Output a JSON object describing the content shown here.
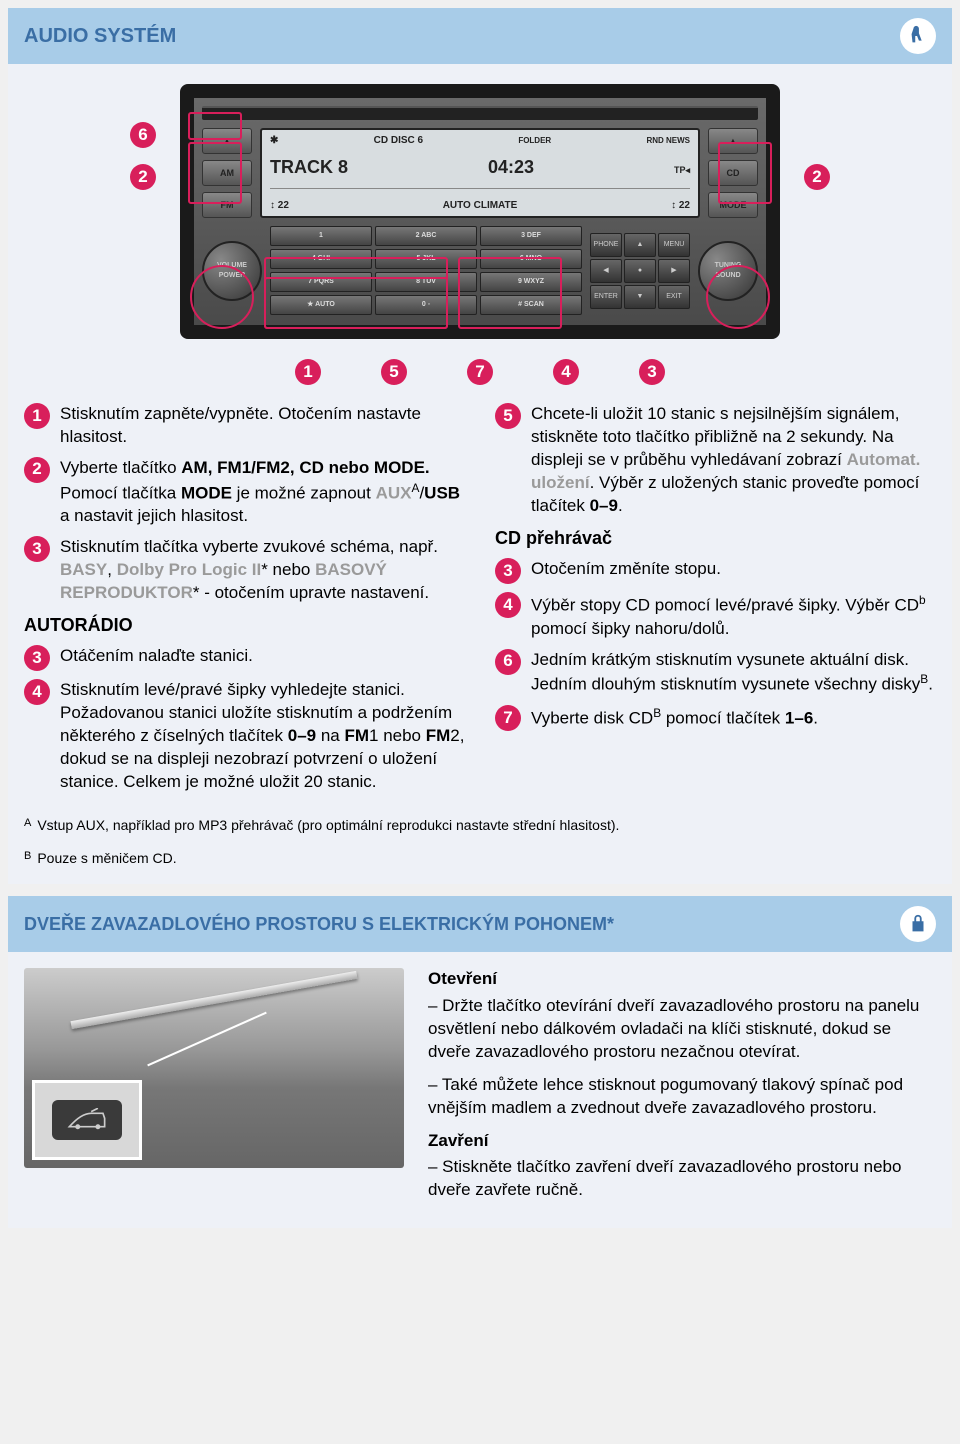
{
  "colors": {
    "header_bg": "#a8cce8",
    "header_text": "#3a6ea5",
    "content_bg": "#eef1f7",
    "bullet_bg": "#d81f5b",
    "highlight_border": "#d81f5b",
    "gray_text": "#9a9a9a"
  },
  "section1": {
    "title": "AUDIO SYSTÉM",
    "icon": "seat-icon"
  },
  "radio": {
    "left_buttons": [
      "▲",
      "AM",
      "FM"
    ],
    "right_buttons": [
      "▲",
      "CD",
      "MODE"
    ],
    "display": {
      "line1_left": "CD   DISC 6",
      "line1_right": "RND  NEWS",
      "line1_mid": "FOLDER",
      "line2_left": "TRACK   8",
      "line2_right": "04:23",
      "line2_far": "TP◂",
      "line3_left": "↕ 22",
      "line3_mid": "AUTO CLIMATE",
      "line3_right": "↕ 22",
      "bt_icon": "✱"
    },
    "knob_left": "VOLUME",
    "knob_left2": "POWER",
    "knob_right": "TUNING",
    "knob_right2": "SOUND",
    "keypad": [
      "1",
      "2 ABC",
      "3 DEF",
      "4 GHI",
      "5 JKL",
      "6 MNO",
      "7 PQRS",
      "8 TUV",
      "9 WXYZ",
      "★ AUTO",
      "0 ◦",
      "# SCAN"
    ],
    "nav": [
      "PHONE",
      "▲",
      "MENU",
      "◀",
      "●",
      "▶",
      "ENTER",
      "▼",
      "EXIT"
    ],
    "callouts_side_left": [
      "6",
      "2"
    ],
    "callouts_side_right": [
      "2"
    ],
    "callouts_bottom": [
      "1",
      "5",
      "7",
      "4",
      "3"
    ]
  },
  "left_col": {
    "items": [
      {
        "n": "1",
        "html": "Stisknutím zapněte/vypněte. Otočením nastavte hlasitost."
      },
      {
        "n": "2",
        "html": "Vyberte tlačítko <b>AM, FM1/FM2, CD nebo MODE.</b> Pomocí tlačítka <b>MODE</b> je možné zapnout <span class=gray>AUX</span><sup>A</sup>/<b>USB</b> a nastavit jejich hlasitost."
      },
      {
        "n": "3",
        "html": "Stisknutím tlačítka vyberte zvukové schéma, např. <span class=gray>BASY</span>, <span class=gray>Dolby Pro Logic II</span>* nebo <span class=gray>BASOVÝ REPRODUKTOR</span>* - otočením upravte nastavení."
      }
    ],
    "subhead": "AUTORÁDIO",
    "items2": [
      {
        "n": "3",
        "html": "Otáčením nalaďte stanici."
      },
      {
        "n": "4",
        "html": "Stisknutím levé/pravé šipky vyhledejte stanici.<br>Požadovanou stanici uložíte stisknutím a podržením některého z číselných tlačítek <b>0–9</b> na <b>FM</b>1 nebo <b>FM</b>2, dokud se na displeji nezobrazí potvrzení o uložení stanice. Celkem je možné uložit 20 stanic."
      }
    ]
  },
  "right_col": {
    "items": [
      {
        "n": "5",
        "html": "Chcete-li uložit 10 stanic s nejsilnějším signálem, stiskněte toto tlačítko přibližně na 2 sekundy. Na displeji se v průběhu vyhledávaní zobrazí <span class=gray>Automat. uložení</span>. Výběr z uložených stanic proveďte pomocí tlačítek <b>0–9</b>."
      }
    ],
    "subhead": "CD přehrávač",
    "items2": [
      {
        "n": "3",
        "html": "Otočením změníte stopu."
      },
      {
        "n": "4",
        "html": "Výběr stopy CD pomocí levé/pravé šipky. Výběr CD<sup>b</sup> pomocí šipky nahoru/dolů."
      },
      {
        "n": "6",
        "html": "Jedním krátkým stisknutím vysunete aktuální disk.<br>Jedním dlouhým stisknutím vysunete všechny disky<sup>B</sup>."
      },
      {
        "n": "7",
        "html": "Vyberte disk CD<sup>B</sup> pomocí tlačítek <b>1–6</b>."
      }
    ]
  },
  "footnotes": [
    {
      "sup": "A",
      "text": "Vstup AUX, například pro MP3 přehrávač (pro optimální reprodukci nastavte střední hlasitost)."
    },
    {
      "sup": "B",
      "text": "Pouze s měničem CD."
    }
  ],
  "section2": {
    "title": "DVEŘE ZAVAZADLOVÉHO PROSTORU S ELEKTRICKÝM POHONEM*",
    "icon": "lock-icon",
    "open_head": "Otevření",
    "open_p1": "– Držte tlačítko otevírání dveří zavazadlového prostoru na panelu osvětlení nebo dálkovém ovladači na klíči stisknuté, dokud se dveře zavazadlového prostoru nezačnou otevírat.",
    "open_p2": "– Také můžete lehce stisknout pogumovaný tlakový spínač pod vnějším madlem a zvednout dveře zavazadlového prostoru.",
    "close_head": "Zavření",
    "close_p1": "– Stiskněte tlačítko zavření dveří zavazadlového prostoru nebo dveře zavřete ručně."
  }
}
